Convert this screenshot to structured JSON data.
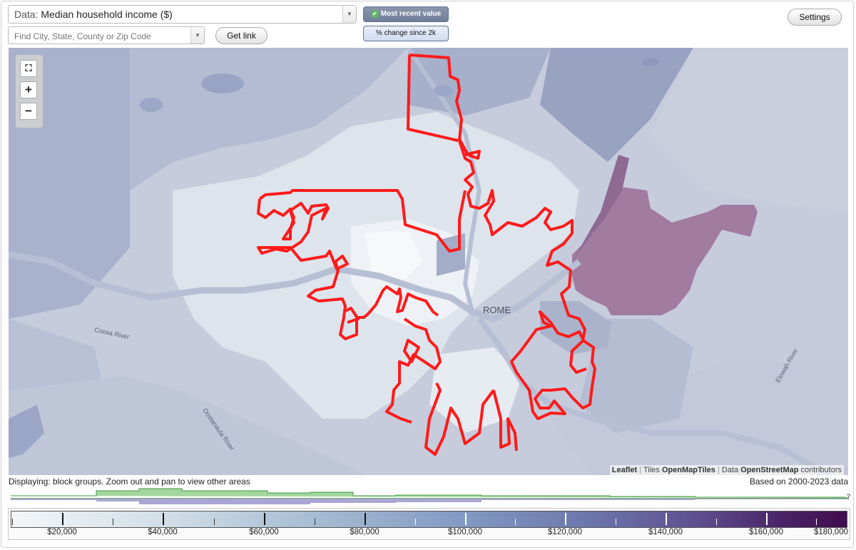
{
  "data_select": {
    "prefix": "Data:",
    "value": "Median household income ($)"
  },
  "search": {
    "placeholder": "Find City, State, County or Zip Code"
  },
  "get_link_label": "Get link",
  "toggle": {
    "most_recent": "Most recent value",
    "pct_change": "% change since 2k"
  },
  "settings_label": "Settings",
  "map": {
    "city_label": "ROME",
    "river_labels": [
      "Coosa River",
      "Oostanaula River",
      "Etowah River"
    ]
  },
  "attribution": {
    "leaflet": "Leaflet",
    "sep1": "|",
    "tiles": "Tiles",
    "openmaptiles": "OpenMapTiles",
    "sep2": "|",
    "data": "Data",
    "osm": "OpenStreetMap",
    "contrib": "contributors"
  },
  "displaying": "Displaying: block groups. Zoom out and pan to view other areas",
  "based_on": "Based on 2000-2023 data",
  "histogram_help": "?",
  "legend": {
    "ticks": [
      "$20,000",
      "$40,000",
      "$60,000",
      "$80,000",
      "$100,000",
      "$120,000",
      "$140,000",
      "$160,000",
      "$180,000"
    ]
  },
  "colors": {
    "outline": "#ff1a1a",
    "scale_low": "#f4f6f8",
    "scale_high": "#3f0c4c",
    "high_area": "#a27ba1"
  }
}
